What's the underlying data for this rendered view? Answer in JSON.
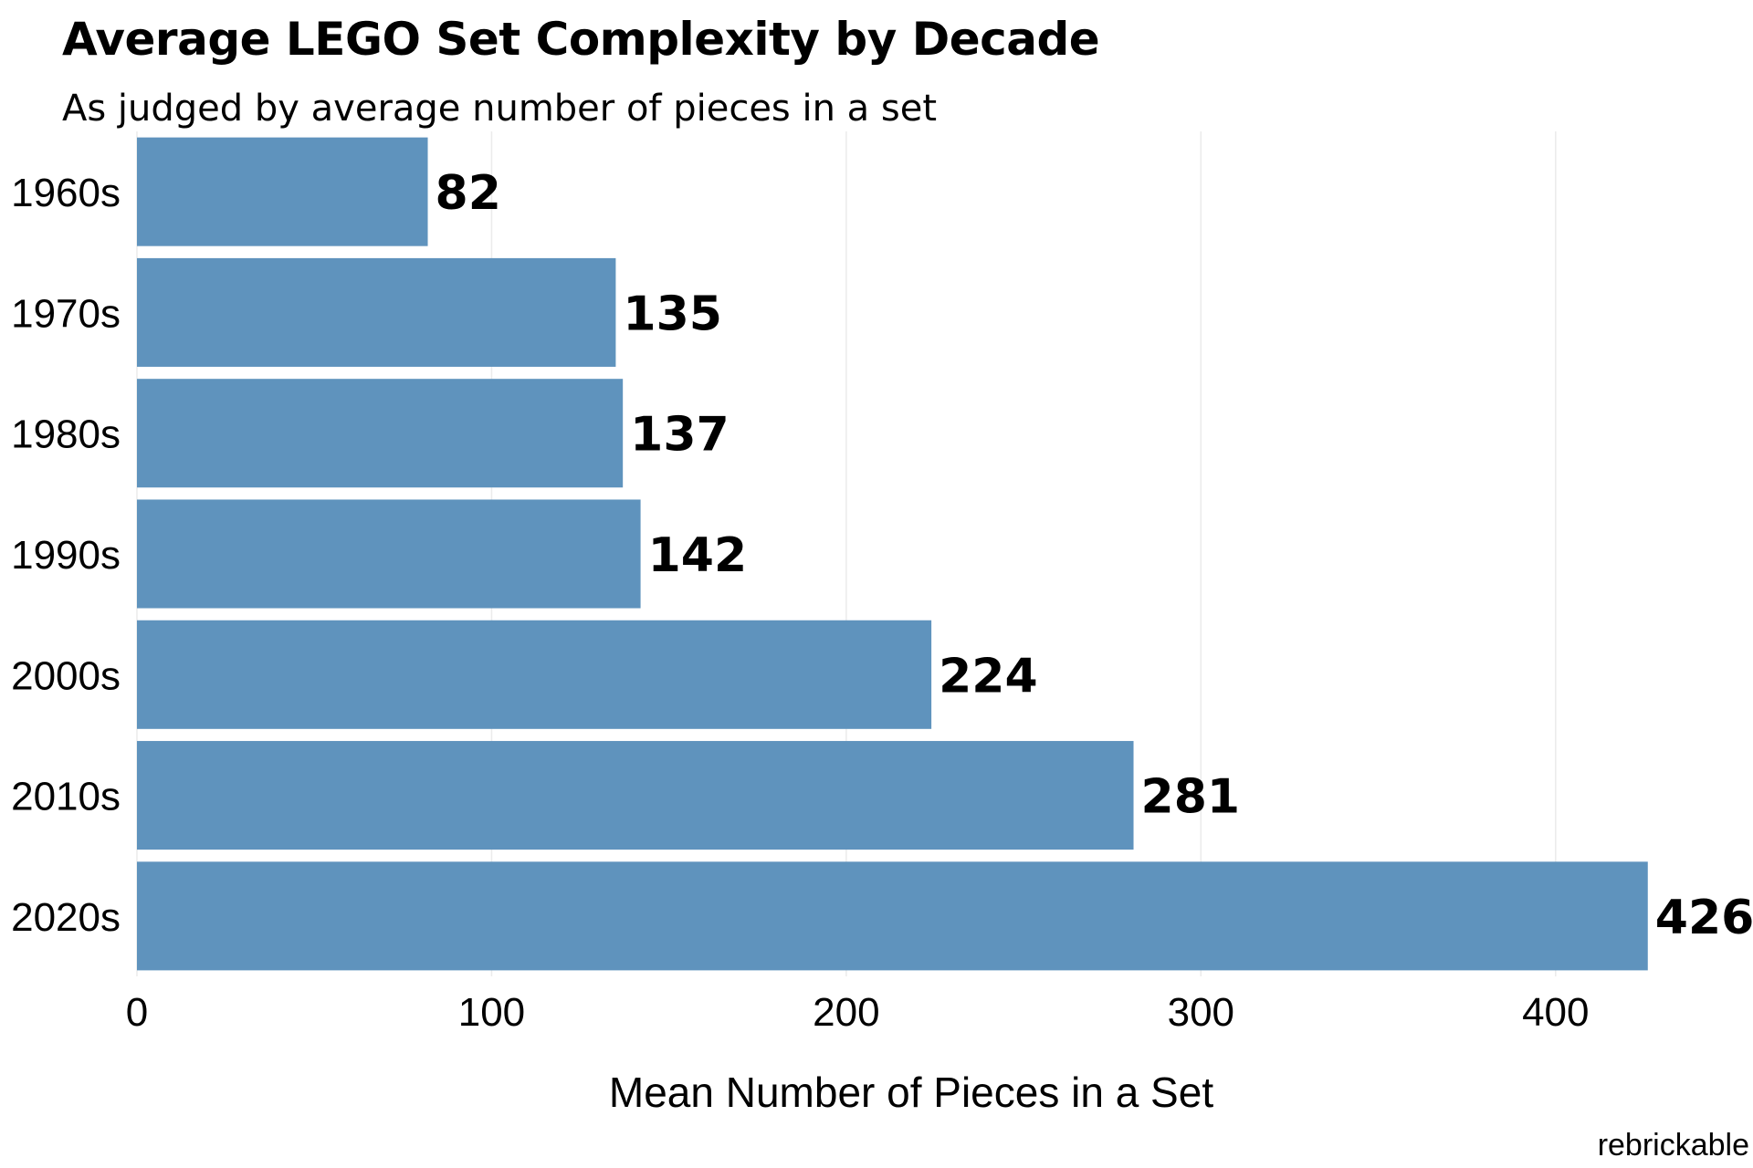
{
  "chart_data": {
    "type": "bar",
    "orientation": "horizontal",
    "title": "Average LEGO Set Complexity by Decade",
    "subtitle": "As judged by average number of pieces in a set",
    "xlabel": "Mean Number of Pieces in a Set",
    "ylabel": "",
    "caption": "rebrickable",
    "categories": [
      "1960s",
      "1970s",
      "1980s",
      "1990s",
      "2000s",
      "2010s",
      "2020s"
    ],
    "values": [
      82,
      135,
      137,
      142,
      224,
      281,
      426
    ],
    "value_labels": [
      "82",
      "135",
      "137",
      "142",
      "224",
      "281",
      "426"
    ],
    "xlim": [
      0,
      450
    ],
    "x_ticks": [
      0,
      100,
      200,
      300,
      400
    ],
    "x_tick_labels": [
      "0",
      "100",
      "200",
      "300",
      "400"
    ],
    "grid": true,
    "legend": "none",
    "bar_color": "#5f93bd"
  }
}
